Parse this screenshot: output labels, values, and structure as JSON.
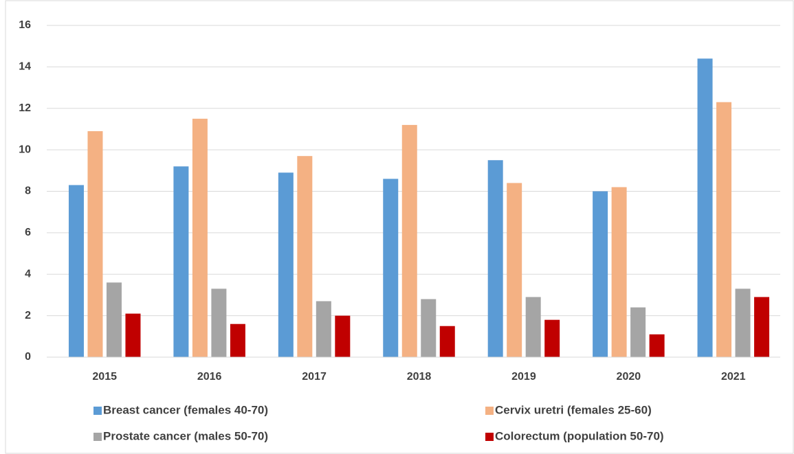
{
  "chart_data": {
    "type": "bar",
    "categories": [
      "2015",
      "2016",
      "2017",
      "2018",
      "2019",
      "2020",
      "2021"
    ],
    "series": [
      {
        "name": "Breast cancer (females 40-70)",
        "color": "#5b9bd5",
        "values": [
          8.3,
          9.2,
          8.9,
          8.6,
          9.5,
          8.0,
          14.4
        ]
      },
      {
        "name": "Cervix uretri (females 25-60)",
        "color": "#f4b183",
        "values": [
          10.9,
          11.5,
          9.7,
          11.2,
          8.4,
          8.2,
          12.3
        ]
      },
      {
        "name": "Prostate cancer (males 50-70)",
        "color": "#a5a5a5",
        "values": [
          3.6,
          3.3,
          2.7,
          2.8,
          2.9,
          2.4,
          3.3
        ]
      },
      {
        "name": "Colorectum (population 50-70)",
        "color": "#c00000",
        "values": [
          2.1,
          1.6,
          2.0,
          1.5,
          1.8,
          1.1,
          2.9
        ]
      }
    ],
    "ylim": [
      0,
      16
    ],
    "yticks": [
      0,
      2,
      4,
      6,
      8,
      10,
      12,
      14,
      16
    ],
    "grid": true
  }
}
